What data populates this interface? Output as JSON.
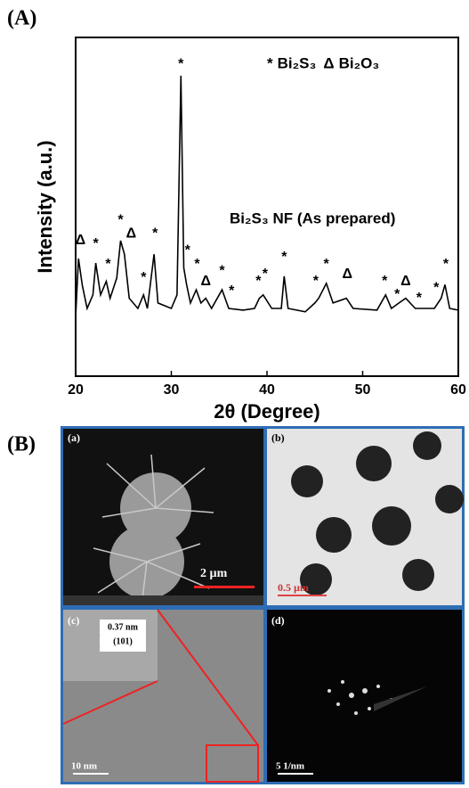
{
  "chart_data": {
    "type": "line",
    "panel_label": "(A)",
    "xlabel": "2θ (Degree)",
    "ylabel": "Intensity (a.u.)",
    "annotation": "Bi₂S₃ NF (As prepared)",
    "legend": [
      {
        "symbol": "*",
        "label": "Bi₂S₃"
      },
      {
        "symbol": "Δ",
        "label": "Bi₂O₃"
      }
    ],
    "xlim": [
      20,
      60
    ],
    "xticks": [
      20,
      30,
      40,
      50,
      60
    ],
    "ylim": [
      0,
      100
    ],
    "series": [
      {
        "color": "#000000",
        "x": [
          20.0,
          20.3,
          20.7,
          21.2,
          21.8,
          22.1,
          22.6,
          23.2,
          23.6,
          24.3,
          24.7,
          25.1,
          25.6,
          26.5,
          27.1,
          27.5,
          28.2,
          28.6,
          30.0,
          30.6,
          31.0,
          31.3,
          31.6,
          32.0,
          32.6,
          33.1,
          33.6,
          34.2,
          35.3,
          36.0,
          37.5,
          38.7,
          39.2,
          39.6,
          40.5,
          41.5,
          41.8,
          42.2,
          44.0,
          45.0,
          45.4,
          46.2,
          46.9,
          48.3,
          49.0,
          51.5,
          52.4,
          53.0,
          53.8,
          54.5,
          55.5,
          57.5,
          58.2,
          58.6,
          59.1,
          60.0
        ],
        "values": [
          17.6,
          34.7,
          26.8,
          20,
          24,
          33.4,
          24,
          28,
          23,
          29,
          40,
          36,
          23,
          20,
          24,
          20,
          36,
          21.6,
          20,
          24,
          88.7,
          32,
          27,
          21.6,
          25.5,
          21.6,
          23,
          20,
          25.5,
          20,
          19.5,
          20,
          23,
          24,
          20,
          20,
          29.5,
          20,
          19,
          21.6,
          23,
          27.4,
          21.6,
          23,
          20,
          19.5,
          24,
          20,
          21.6,
          23,
          20,
          20,
          23,
          27,
          20,
          19.5
        ]
      }
    ],
    "peak_labels": [
      {
        "text": "Δ",
        "x": 20.5,
        "y": 40
      },
      {
        "text": "*",
        "x": 22.1,
        "y": 39
      },
      {
        "text": "*",
        "x": 23.4,
        "y": 33
      },
      {
        "text": "*",
        "x": 24.7,
        "y": 46
      },
      {
        "text": "Δ",
        "x": 25.8,
        "y": 42
      },
      {
        "text": "*",
        "x": 27.1,
        "y": 29
      },
      {
        "text": "*",
        "x": 28.3,
        "y": 42
      },
      {
        "text": "*",
        "x": 31.0,
        "y": 92
      },
      {
        "text": "*",
        "x": 31.7,
        "y": 37
      },
      {
        "text": "*",
        "x": 32.7,
        "y": 33
      },
      {
        "text": "Δ",
        "x": 33.6,
        "y": 28
      },
      {
        "text": "*",
        "x": 35.3,
        "y": 31
      },
      {
        "text": "*",
        "x": 36.3,
        "y": 25
      },
      {
        "text": "*",
        "x": 39.1,
        "y": 28
      },
      {
        "text": "*",
        "x": 39.8,
        "y": 30
      },
      {
        "text": "*",
        "x": 41.8,
        "y": 35
      },
      {
        "text": "*",
        "x": 45.1,
        "y": 28
      },
      {
        "text": "*",
        "x": 46.2,
        "y": 33
      },
      {
        "text": "Δ",
        "x": 48.4,
        "y": 30
      },
      {
        "text": "*",
        "x": 52.3,
        "y": 28
      },
      {
        "text": "*",
        "x": 53.6,
        "y": 24
      },
      {
        "text": "Δ",
        "x": 54.5,
        "y": 28
      },
      {
        "text": "*",
        "x": 55.9,
        "y": 23
      },
      {
        "text": "*",
        "x": 57.7,
        "y": 26
      },
      {
        "text": "*",
        "x": 58.7,
        "y": 33
      }
    ]
  },
  "panel_b": {
    "label": "(B)",
    "a": {
      "label": "(a)",
      "scale": "2 µm"
    },
    "b": {
      "label": "(b)",
      "scale": "0.5 µm"
    },
    "c": {
      "label": "(c)",
      "scale": "10 nm",
      "spacing": "0.37 nm",
      "plane": "(101)"
    },
    "d": {
      "label": "(d)",
      "scale": "5 1/nm"
    }
  }
}
